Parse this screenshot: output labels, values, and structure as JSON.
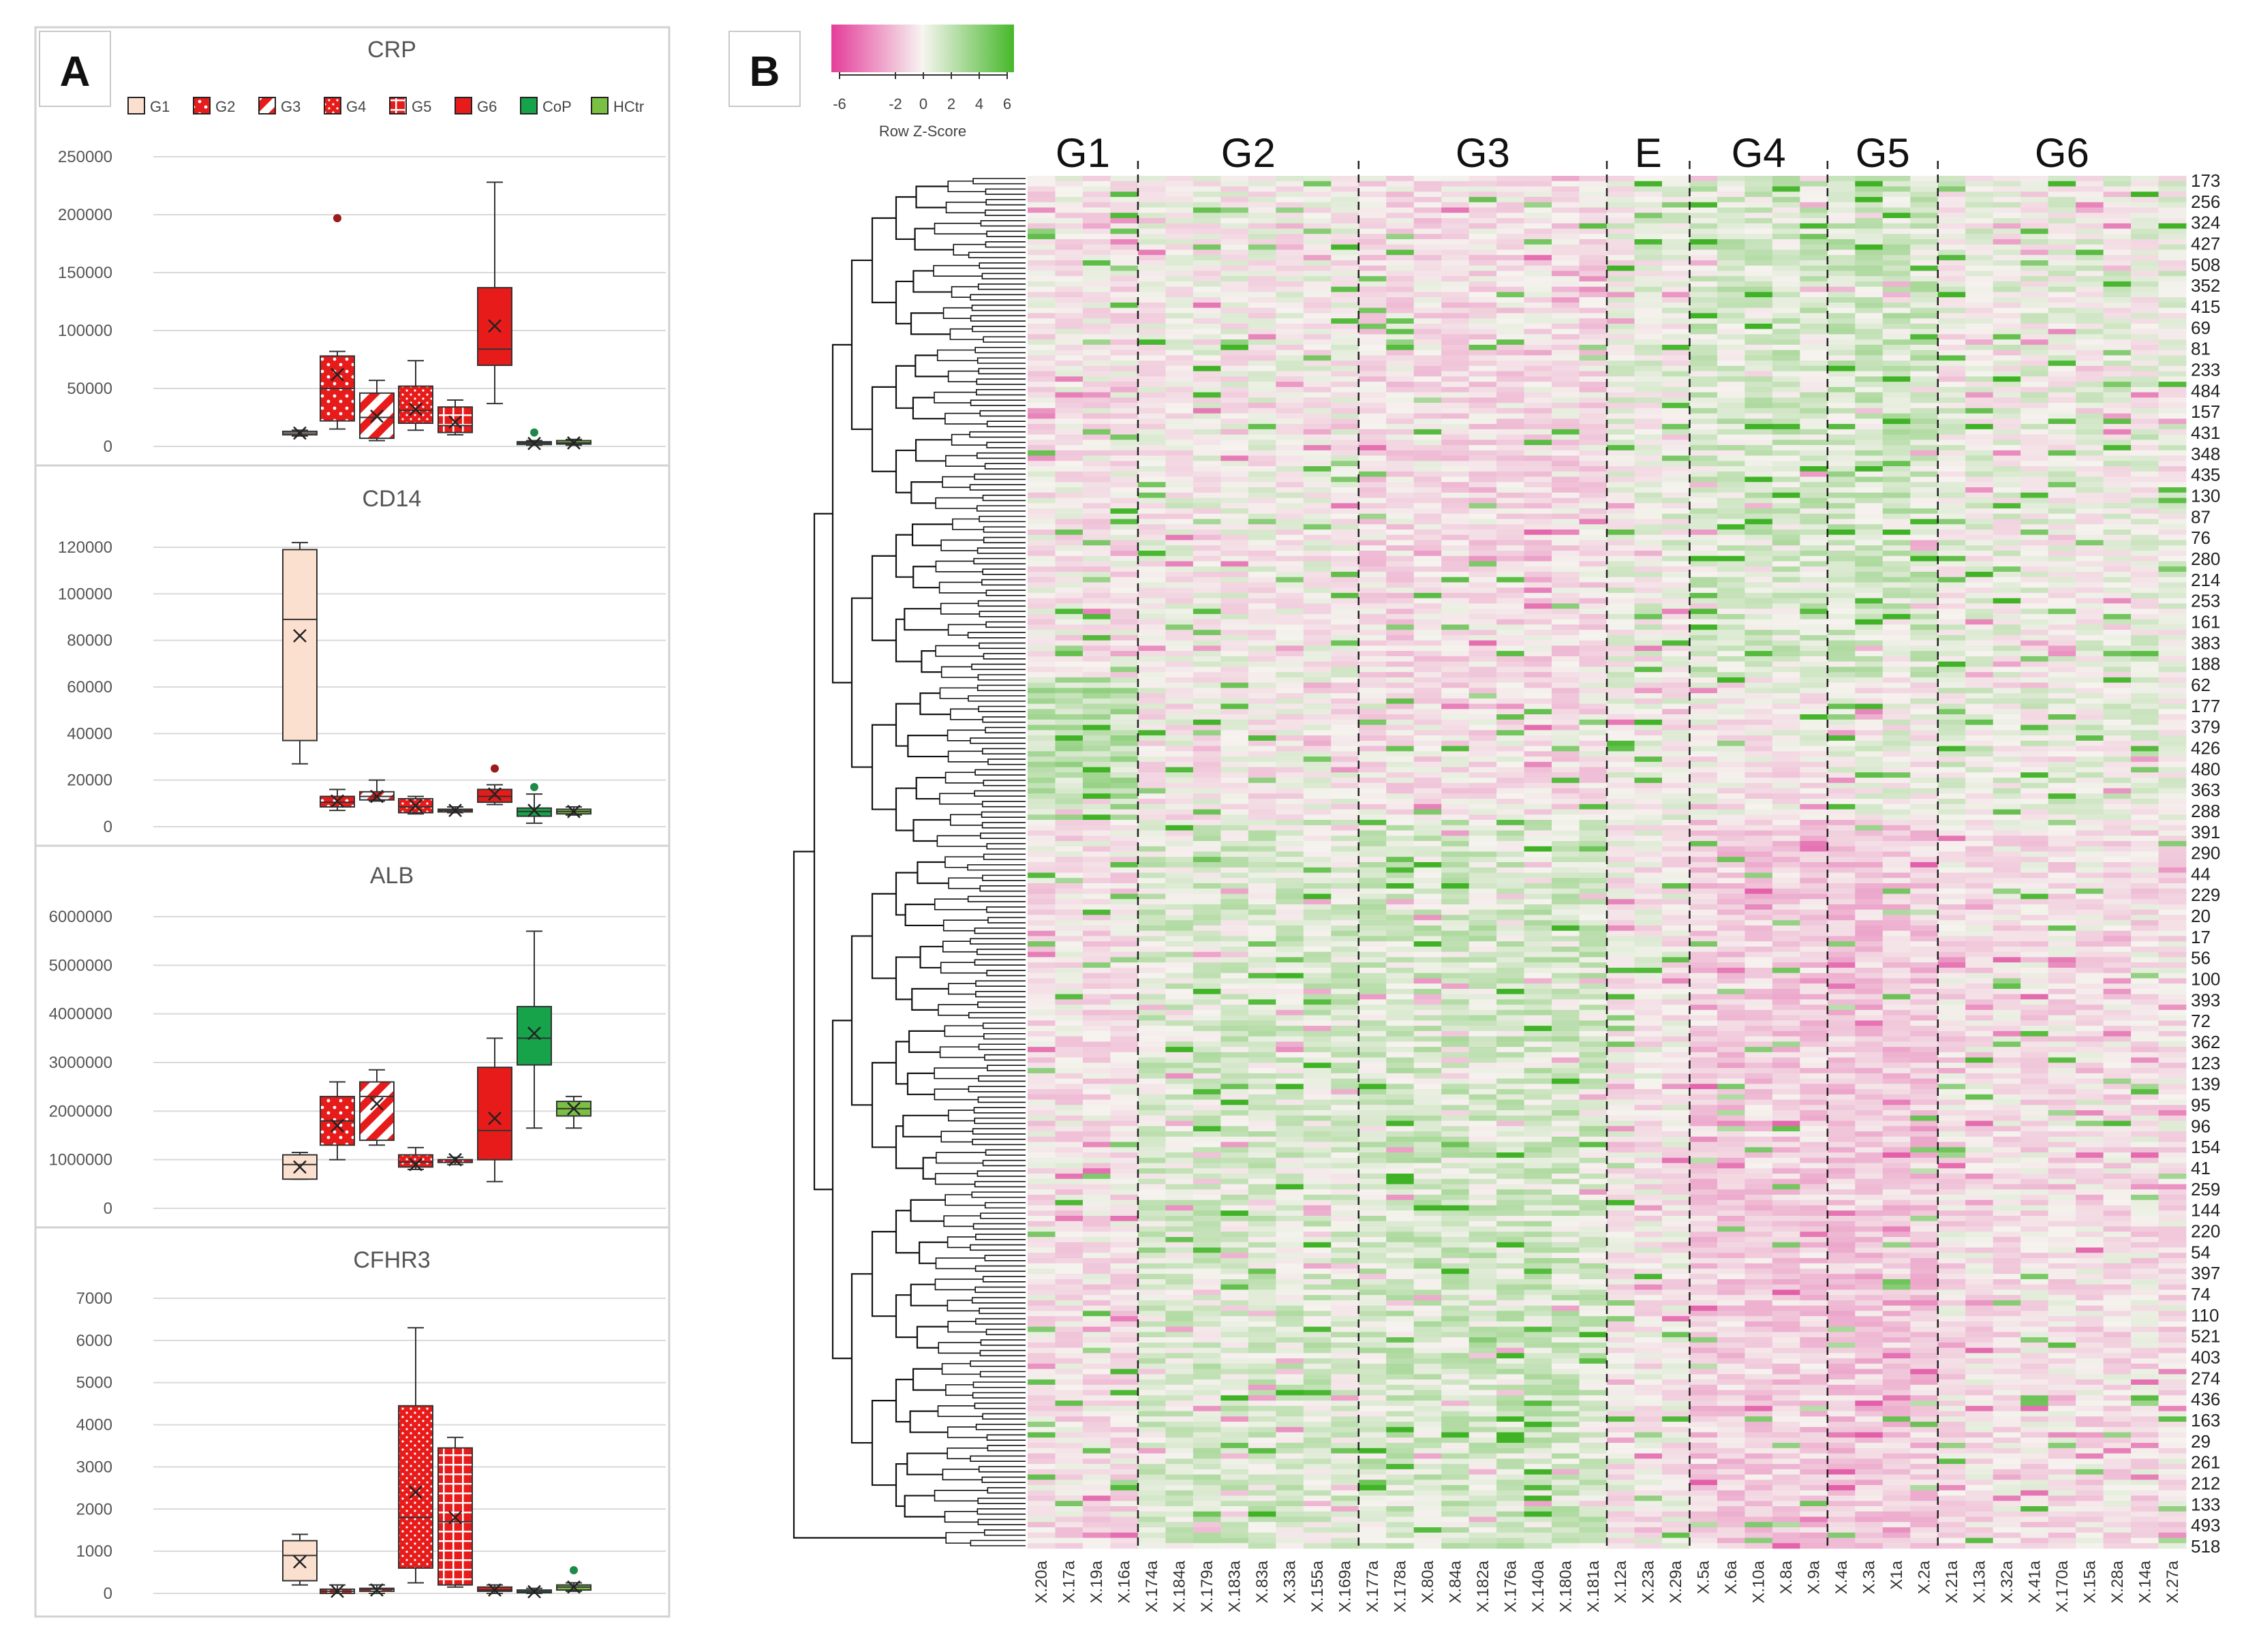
{
  "panel_a": {
    "label": "A"
  },
  "panel_b": {
    "label": "B"
  },
  "colors": {
    "G1": "#fbe0d0",
    "G2": "#e81b1b",
    "G3": "#e81b1b",
    "G4": "#e81b1b",
    "G5": "#e81b1b",
    "G6": "#e81b1b",
    "CoP": "#16a34a",
    "HCtr": "#79c043",
    "heat_low": "#e94fa3",
    "heat_mid": "#f7f5f1",
    "heat_high": "#4fbf2a"
  },
  "legend": [
    {
      "name": "G1",
      "pattern": "solid-light"
    },
    {
      "name": "G2",
      "pattern": "dots"
    },
    {
      "name": "G3",
      "pattern": "stripes"
    },
    {
      "name": "G4",
      "pattern": "dots"
    },
    {
      "name": "G5",
      "pattern": "grid"
    },
    {
      "name": "G6",
      "pattern": "solid"
    },
    {
      "name": "CoP",
      "pattern": "solid"
    },
    {
      "name": "HCtr",
      "pattern": "solid"
    }
  ],
  "chart_data": [
    {
      "type": "box",
      "title": "CRP",
      "ylim": [
        0,
        250000
      ],
      "yticks": [
        "0",
        "50000",
        "100000",
        "150000",
        "200000",
        "250000"
      ],
      "categories": [
        "G1",
        "G2",
        "G3",
        "G4",
        "G5",
        "G6",
        "CoP",
        "HCtr"
      ],
      "boxes": [
        {
          "group": "G1",
          "min": 9000,
          "q1": 10000,
          "median": 11500,
          "q3": 13000,
          "max": 14000,
          "mean": 11500
        },
        {
          "group": "G2",
          "min": 15000,
          "q1": 22000,
          "median": 50000,
          "q3": 78000,
          "max": 82000,
          "mean": 62000,
          "outliers": [
            197000
          ]
        },
        {
          "group": "G3",
          "min": 5000,
          "q1": 7000,
          "median": 25000,
          "q3": 46000,
          "max": 57000,
          "mean": 26000
        },
        {
          "group": "G4",
          "min": 14000,
          "q1": 20000,
          "median": 31000,
          "q3": 52000,
          "max": 74000,
          "mean": 32000
        },
        {
          "group": "G5",
          "min": 10000,
          "q1": 12000,
          "median": 18000,
          "q3": 34000,
          "max": 40000,
          "mean": 21000
        },
        {
          "group": "G6",
          "min": 37000,
          "q1": 70000,
          "median": 84000,
          "q3": 137000,
          "max": 228000,
          "mean": 104000
        },
        {
          "group": "CoP",
          "min": 1000,
          "q1": 2000,
          "median": 3000,
          "q3": 4000,
          "max": 5000,
          "mean": 2500,
          "outliers": [
            12000
          ]
        },
        {
          "group": "HCtr",
          "min": 1000,
          "q1": 2000,
          "median": 3000,
          "q3": 5000,
          "max": 6000,
          "mean": 3000
        }
      ]
    },
    {
      "type": "box",
      "title": "CD14",
      "ylim": [
        0,
        120000
      ],
      "yticks": [
        "0",
        "20000",
        "40000",
        "60000",
        "80000",
        "100000",
        "120000"
      ],
      "categories": [
        "G1",
        "G2",
        "G3",
        "G4",
        "G5",
        "G6",
        "CoP",
        "HCtr"
      ],
      "boxes": [
        {
          "group": "G1",
          "min": 27000,
          "q1": 37000,
          "median": 89000,
          "q3": 119000,
          "max": 122000,
          "mean": 82000
        },
        {
          "group": "G2",
          "min": 7000,
          "q1": 8500,
          "median": 10500,
          "q3": 13000,
          "max": 16000,
          "mean": 11000
        },
        {
          "group": "G3",
          "min": 11000,
          "q1": 11500,
          "median": 13000,
          "q3": 15000,
          "max": 20000,
          "mean": 13000
        },
        {
          "group": "G4",
          "min": 5500,
          "q1": 6000,
          "median": 8500,
          "q3": 12000,
          "max": 13000,
          "mean": 9000
        },
        {
          "group": "G5",
          "min": 6000,
          "q1": 6500,
          "median": 7000,
          "q3": 7500,
          "max": 8500,
          "mean": 7000
        },
        {
          "group": "G6",
          "min": 9500,
          "q1": 10500,
          "median": 13000,
          "q3": 16000,
          "max": 18000,
          "mean": 14000,
          "outliers": [
            25000
          ]
        },
        {
          "group": "CoP",
          "min": 1500,
          "q1": 4500,
          "median": 6500,
          "q3": 8000,
          "max": 14000,
          "mean": 7000,
          "outliers": [
            17000
          ]
        },
        {
          "group": "HCtr",
          "min": 5000,
          "q1": 5500,
          "median": 6500,
          "q3": 7500,
          "max": 8500,
          "mean": 6500
        }
      ]
    },
    {
      "type": "box",
      "title": "ALB",
      "ylim": [
        0,
        6000000
      ],
      "yticks": [
        "0",
        "1000000",
        "2000000",
        "3000000",
        "4000000",
        "5000000",
        "6000000"
      ],
      "categories": [
        "G1",
        "G2",
        "G3",
        "G4",
        "G5",
        "G6",
        "CoP",
        "HCtr"
      ],
      "boxes": [
        {
          "group": "G1",
          "min": 600000,
          "q1": 600000,
          "median": 900000,
          "q3": 1100000,
          "max": 1150000,
          "mean": 850000
        },
        {
          "group": "G2",
          "min": 1000000,
          "q1": 1300000,
          "median": 1800000,
          "q3": 2300000,
          "max": 2600000,
          "mean": 1700000
        },
        {
          "group": "G3",
          "min": 1300000,
          "q1": 1400000,
          "median": 2300000,
          "q3": 2600000,
          "max": 2850000,
          "mean": 2150000
        },
        {
          "group": "G4",
          "min": 800000,
          "q1": 850000,
          "median": 950000,
          "q3": 1100000,
          "max": 1250000,
          "mean": 900000
        },
        {
          "group": "G5",
          "min": 900000,
          "q1": 950000,
          "median": 1000000,
          "q3": 1000000,
          "max": 1050000,
          "mean": 1000000
        },
        {
          "group": "G6",
          "min": 550000,
          "q1": 1000000,
          "median": 1600000,
          "q3": 2900000,
          "max": 3500000,
          "mean": 1850000
        },
        {
          "group": "CoP",
          "min": 1650000,
          "q1": 2950000,
          "median": 3500000,
          "q3": 4150000,
          "max": 5700000,
          "mean": 3600000
        },
        {
          "group": "HCtr",
          "min": 1650000,
          "q1": 1900000,
          "median": 2050000,
          "q3": 2200000,
          "max": 2300000,
          "mean": 2050000
        }
      ]
    },
    {
      "type": "box",
      "title": "CFHR3",
      "ylim": [
        0,
        7000
      ],
      "yticks": [
        "0",
        "1000",
        "2000",
        "3000",
        "4000",
        "5000",
        "6000",
        "7000"
      ],
      "categories": [
        "G1",
        "G2",
        "G3",
        "G4",
        "G5",
        "G6",
        "CoP",
        "HCtr"
      ],
      "boxes": [
        {
          "group": "G1",
          "min": 200,
          "q1": 300,
          "median": 900,
          "q3": 1250,
          "max": 1400,
          "mean": 750
        },
        {
          "group": "G2",
          "min": 0,
          "q1": 0,
          "median": 50,
          "q3": 100,
          "max": 200,
          "mean": 50
        },
        {
          "group": "G3",
          "min": 0,
          "q1": 50,
          "median": 100,
          "q3": 120,
          "max": 200,
          "mean": 80
        },
        {
          "group": "G4",
          "min": 250,
          "q1": 600,
          "median": 1800,
          "q3": 4450,
          "max": 6300,
          "mean": 2400
        },
        {
          "group": "G5",
          "min": 150,
          "q1": 200,
          "median": 1700,
          "q3": 3450,
          "max": 3700,
          "mean": 1800
        },
        {
          "group": "G6",
          "min": 0,
          "q1": 50,
          "median": 80,
          "q3": 150,
          "max": 200,
          "mean": 80
        },
        {
          "group": "CoP",
          "min": 0,
          "q1": 20,
          "median": 40,
          "q3": 80,
          "max": 120,
          "mean": 40
        },
        {
          "group": "HCtr",
          "min": 50,
          "q1": 80,
          "median": 150,
          "q3": 200,
          "max": 250,
          "mean": 150,
          "outliers": [
            550
          ]
        }
      ]
    },
    {
      "type": "heatmap",
      "color_key": {
        "title": "Row Z-Score",
        "ticks": [
          "-6",
          "-2",
          "0",
          "2",
          "4",
          "6"
        ]
      },
      "groups": [
        {
          "name": "G1",
          "columns": [
            "X.20a",
            "X.17a",
            "X.19a",
            "X.16a"
          ]
        },
        {
          "name": "G2",
          "columns": [
            "X.174a",
            "X.184a",
            "X.179a",
            "X.183a",
            "X.83a",
            "X.33a",
            "X.155a",
            "X.169a"
          ]
        },
        {
          "name": "G3",
          "columns": [
            "X.177a",
            "X.178a",
            "X.80a",
            "X.84a",
            "X.182a",
            "X.176a",
            "X.140a",
            "X.180a",
            "X.181a"
          ]
        },
        {
          "name": "E",
          "columns": [
            "X.12a",
            "X.23a",
            "X.29a"
          ]
        },
        {
          "name": "G4",
          "columns": [
            "X.5a",
            "X.6a",
            "X.10a",
            "X.8a",
            "X.9a"
          ]
        },
        {
          "name": "G5",
          "columns": [
            "X.4a",
            "X.3a",
            "X1a",
            "X.2a"
          ]
        },
        {
          "name": "G6",
          "columns": [
            "X.21a",
            "X.13a",
            "X.32a",
            "X.41a",
            "X.170a",
            "X.15a",
            "X.28a",
            "X.14a",
            "X.27a"
          ]
        }
      ],
      "row_labels": [
        "173",
        "256",
        "324",
        "427",
        "508",
        "352",
        "415",
        "69",
        "81",
        "233",
        "484",
        "157",
        "431",
        "348",
        "435",
        "130",
        "87",
        "76",
        "280",
        "214",
        "253",
        "161",
        "383",
        "188",
        "62",
        "177",
        "379",
        "426",
        "480",
        "363",
        "288",
        "391",
        "290",
        "44",
        "229",
        "20",
        "17",
        "56",
        "100",
        "393",
        "72",
        "362",
        "123",
        "139",
        "95",
        "96",
        "154",
        "41",
        "259",
        "144",
        "220",
        "54",
        "397",
        "74",
        "110",
        "521",
        "403",
        "274",
        "436",
        "163",
        "29",
        "261",
        "212",
        "133",
        "493",
        "518"
      ]
    }
  ]
}
